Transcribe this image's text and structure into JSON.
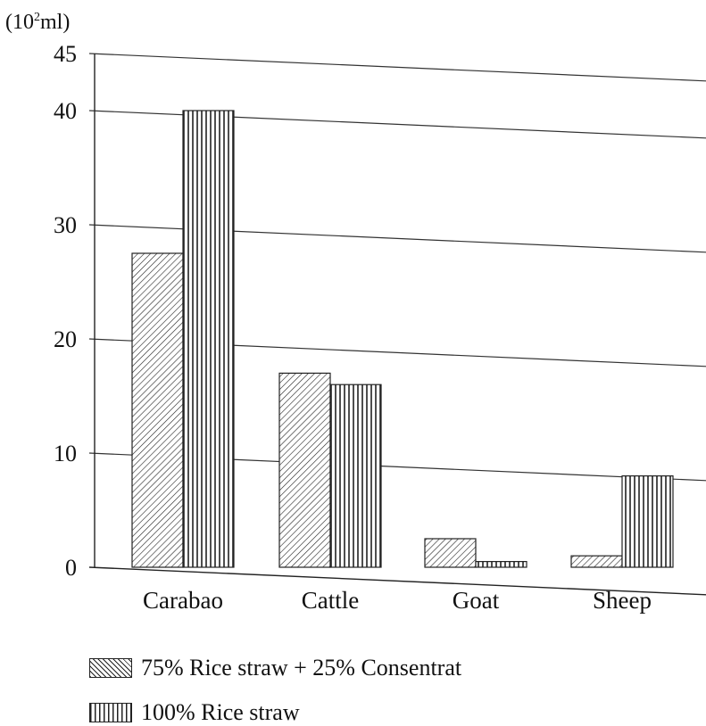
{
  "chart_data": {
    "type": "bar",
    "unit_label_prefix": "(10",
    "unit_label_exp": "2",
    "unit_label_suffix": "ml)",
    "categories": [
      "Carabao",
      "Cattle",
      "Goat",
      "Sheep"
    ],
    "series": [
      {
        "name": "75% Rice straw + 25% Consentrat",
        "pattern": "diagonal",
        "values": [
          27.5,
          17,
          2.5,
          1
        ]
      },
      {
        "name": "100% Rice straw",
        "pattern": "vertical",
        "values": [
          40,
          16,
          0.5,
          8
        ]
      }
    ],
    "ylim": [
      0,
      45
    ],
    "yticks": [
      0,
      10,
      20,
      30,
      40,
      45
    ],
    "grid": true,
    "legend_position": "bottom-left",
    "colors": {
      "ink": "#222222",
      "grid": "#333333",
      "background": "#ffffff"
    }
  }
}
